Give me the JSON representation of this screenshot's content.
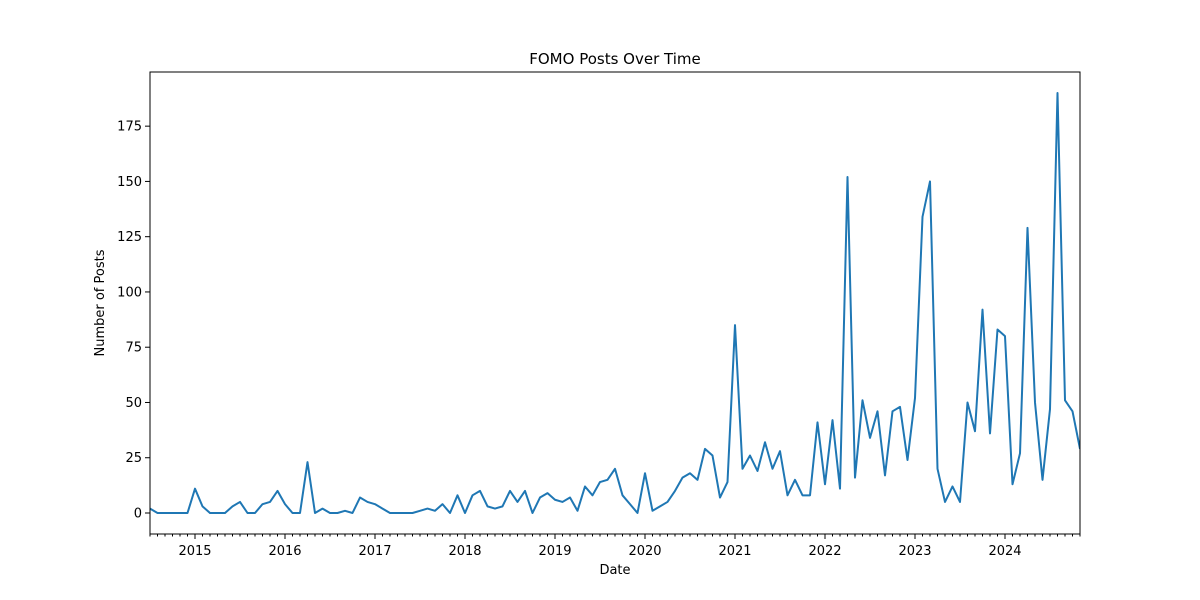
{
  "chart_data": {
    "type": "line",
    "title": "FOMO Posts Over Time",
    "xlabel": "Date",
    "ylabel": "Number of Posts",
    "x_start": "2014-07",
    "x_end": "2024-11",
    "xlim": [
      "2014-07",
      "2024-11"
    ],
    "ylim": [
      -9.5,
      199.5
    ],
    "x_ticks": [
      "2015",
      "2016",
      "2017",
      "2018",
      "2019",
      "2020",
      "2021",
      "2022",
      "2023",
      "2024"
    ],
    "y_ticks": [
      0,
      25,
      50,
      75,
      100,
      125,
      150,
      175
    ],
    "grid": false,
    "line_color": "#1f77b4",
    "series": [
      {
        "x": [
          "2014-07",
          "2014-08",
          "2014-09",
          "2014-10",
          "2014-11",
          "2014-12",
          "2015-01",
          "2015-02",
          "2015-03",
          "2015-04",
          "2015-05",
          "2015-06",
          "2015-07",
          "2015-08",
          "2015-09",
          "2015-10",
          "2015-11",
          "2015-12",
          "2016-01",
          "2016-02",
          "2016-03",
          "2016-04",
          "2016-05",
          "2016-06",
          "2016-07",
          "2016-08",
          "2016-09",
          "2016-10",
          "2016-11",
          "2016-12",
          "2017-01",
          "2017-02",
          "2017-03",
          "2017-04",
          "2017-05",
          "2017-06",
          "2017-07",
          "2017-08",
          "2017-09",
          "2017-10",
          "2017-11",
          "2017-12",
          "2018-01",
          "2018-02",
          "2018-03",
          "2018-04",
          "2018-05",
          "2018-06",
          "2018-07",
          "2018-08",
          "2018-09",
          "2018-10",
          "2018-11",
          "2018-12",
          "2019-01",
          "2019-02",
          "2019-03",
          "2019-04",
          "2019-05",
          "2019-06",
          "2019-07",
          "2019-08",
          "2019-09",
          "2019-10",
          "2019-11",
          "2019-12",
          "2020-01",
          "2020-02",
          "2020-03",
          "2020-04",
          "2020-05",
          "2020-06",
          "2020-07",
          "2020-08",
          "2020-09",
          "2020-10",
          "2020-11",
          "2020-12",
          "2021-01",
          "2021-02",
          "2021-03",
          "2021-04",
          "2021-05",
          "2021-06",
          "2021-07",
          "2021-08",
          "2021-09",
          "2021-10",
          "2021-11",
          "2021-12",
          "2022-01",
          "2022-02",
          "2022-03",
          "2022-04",
          "2022-05",
          "2022-06",
          "2022-07",
          "2022-08",
          "2022-09",
          "2022-10",
          "2022-11",
          "2022-12",
          "2023-01",
          "2023-02",
          "2023-03",
          "2023-04",
          "2023-05",
          "2023-06",
          "2023-07",
          "2023-08",
          "2023-09",
          "2023-10",
          "2023-11",
          "2023-12",
          "2024-01",
          "2024-02",
          "2024-03",
          "2024-04",
          "2024-05",
          "2024-06",
          "2024-07",
          "2024-08",
          "2024-09",
          "2024-10",
          "2024-11"
        ],
        "values": [
          2,
          0,
          0,
          0,
          0,
          0,
          11,
          3,
          0,
          0,
          0,
          3,
          5,
          0,
          0,
          4,
          5,
          10,
          4,
          0,
          0,
          23,
          0,
          2,
          0,
          0,
          1,
          0,
          7,
          5,
          4,
          2,
          0,
          0,
          0,
          0,
          1,
          2,
          1,
          4,
          0,
          8,
          0,
          8,
          10,
          3,
          2,
          3,
          10,
          5,
          10,
          0,
          7,
          9,
          6,
          5,
          7,
          1,
          12,
          8,
          14,
          15,
          20,
          8,
          4,
          0,
          18,
          1,
          3,
          5,
          10,
          16,
          18,
          15,
          29,
          26,
          7,
          14,
          85,
          20,
          26,
          19,
          32,
          20,
          28,
          8,
          15,
          8,
          8,
          41,
          13,
          42,
          11,
          152,
          16,
          51,
          34,
          46,
          17,
          46,
          48,
          24,
          52,
          134,
          150,
          20,
          5,
          12,
          5,
          50,
          37,
          92,
          36,
          83,
          80,
          13,
          27,
          129,
          50,
          15,
          47,
          190,
          51,
          46,
          29
        ]
      }
    ]
  }
}
